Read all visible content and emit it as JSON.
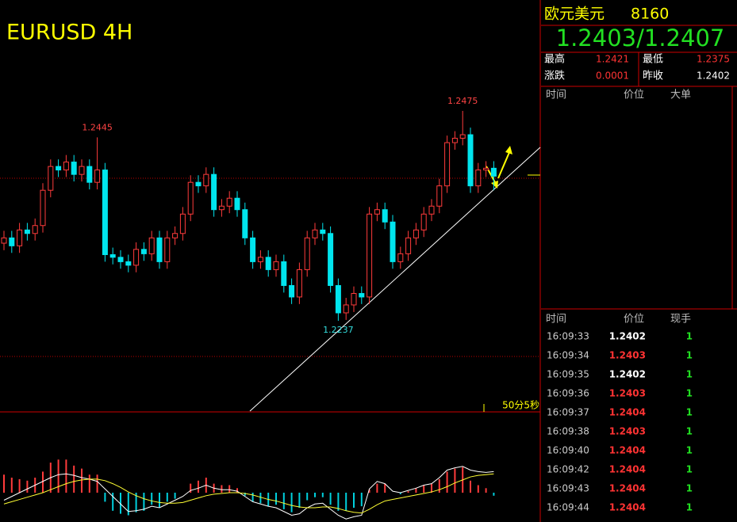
{
  "chart_data": {
    "type": "candlestick",
    "title": "EURUSD 4H",
    "open": [
      1.2325,
      1.2331,
      1.2322,
      1.234,
      1.2336,
      1.2345,
      1.2385,
      1.2412,
      1.2408,
      1.2417,
      1.2403,
      1.2412,
      1.2394,
      1.2408,
      1.2312,
      1.2309,
      1.2304,
      1.23,
      1.2318,
      1.2313,
      1.2331,
      1.2304,
      1.2331,
      1.2336,
      1.2358,
      1.2394,
      1.239,
      1.2403,
      1.2363,
      1.2367,
      1.2376,
      1.2363,
      1.2331,
      1.2304,
      1.2309,
      1.2295,
      1.2304,
      1.2277,
      1.2264,
      1.2295,
      1.2331,
      1.234,
      1.2336,
      1.2277,
      1.2246,
      1.2255,
      1.2268,
      1.2264,
      1.2358,
      1.2363,
      1.2349,
      1.2304,
      1.2313,
      1.2331,
      1.234,
      1.2358,
      1.2367,
      1.239,
      1.2439,
      1.2444,
      1.2448,
      1.239,
      1.2408,
      1.241
    ],
    "high": [
      1.2339,
      1.2339,
      1.2348,
      1.2348,
      1.2353,
      1.2393,
      1.242,
      1.242,
      1.2425,
      1.2425,
      1.242,
      1.242,
      1.2445,
      1.2416,
      1.232,
      1.2317,
      1.2312,
      1.2326,
      1.2326,
      1.2339,
      1.2339,
      1.2339,
      1.2344,
      1.2366,
      1.2402,
      1.2402,
      1.2411,
      1.2411,
      1.2375,
      1.2384,
      1.2384,
      1.2371,
      1.2339,
      1.2317,
      1.2317,
      1.2312,
      1.2312,
      1.2285,
      1.2303,
      1.2339,
      1.2348,
      1.2348,
      1.2344,
      1.2285,
      1.2263,
      1.2276,
      1.2276,
      1.2366,
      1.2371,
      1.2371,
      1.2357,
      1.2321,
      1.2339,
      1.2348,
      1.2366,
      1.2375,
      1.2398,
      1.2447,
      1.2452,
      1.2475,
      1.2456,
      1.2416,
      1.2418,
      1.2418
    ],
    "low": [
      1.2317,
      1.2314,
      1.2314,
      1.2328,
      1.2328,
      1.2337,
      1.2377,
      1.24,
      1.24,
      1.2395,
      1.2395,
      1.2386,
      1.2386,
      1.2304,
      1.2301,
      1.2296,
      1.2292,
      1.2292,
      1.2305,
      1.2305,
      1.2296,
      1.2296,
      1.2323,
      1.2328,
      1.235,
      1.2382,
      1.2382,
      1.2355,
      1.2355,
      1.2359,
      1.2355,
      1.2323,
      1.2296,
      1.2296,
      1.2287,
      1.2287,
      1.2269,
      1.2256,
      1.2256,
      1.2287,
      1.2323,
      1.2328,
      1.2269,
      1.2237,
      1.2238,
      1.2247,
      1.2256,
      1.2256,
      1.235,
      1.2341,
      1.2296,
      1.2296,
      1.2305,
      1.2323,
      1.2332,
      1.235,
      1.2359,
      1.2382,
      1.2431,
      1.2436,
      1.2382,
      1.2382,
      1.24,
      1.2385
    ],
    "close": [
      1.2331,
      1.2322,
      1.234,
      1.2336,
      1.2345,
      1.2385,
      1.2412,
      1.2408,
      1.2417,
      1.2403,
      1.2412,
      1.2394,
      1.2408,
      1.2312,
      1.2309,
      1.2304,
      1.23,
      1.2318,
      1.2313,
      1.2331,
      1.2304,
      1.2331,
      1.2336,
      1.2358,
      1.2394,
      1.239,
      1.2403,
      1.2363,
      1.2367,
      1.2376,
      1.2363,
      1.2331,
      1.2304,
      1.2309,
      1.2295,
      1.2304,
      1.2277,
      1.2264,
      1.2295,
      1.2331,
      1.234,
      1.2336,
      1.2277,
      1.2246,
      1.2255,
      1.2268,
      1.2264,
      1.2358,
      1.2363,
      1.2349,
      1.2304,
      1.2313,
      1.2331,
      1.234,
      1.2358,
      1.2367,
      1.239,
      1.2439,
      1.2444,
      1.2448,
      1.239,
      1.2408,
      1.241,
      1.2401
    ],
    "annotations": [
      {
        "text": "1.2445",
        "index": 12,
        "at": "high"
      },
      {
        "text": "1.2475",
        "index": 59,
        "at": "high"
      },
      {
        "text": "1.2237",
        "index": 43,
        "at": "low"
      }
    ],
    "timer": "50分5秒",
    "macd": {
      "hist": [
        12,
        10,
        9,
        8,
        10,
        14,
        20,
        22,
        22,
        18,
        16,
        12,
        12,
        -6,
        -12,
        -14,
        -15,
        -13,
        -12,
        -8,
        -10,
        -6,
        -4,
        0,
        6,
        8,
        10,
        6,
        5,
        5,
        3,
        -2,
        -6,
        -7,
        -9,
        -8,
        -11,
        -13,
        -10,
        -5,
        -3,
        -3,
        -8,
        -12,
        -12,
        -10,
        -9,
        2,
        6,
        6,
        0,
        -1,
        1,
        3,
        5,
        6,
        9,
        14,
        16,
        17,
        8,
        5,
        3,
        -2
      ],
      "dif": [
        -10,
        -5,
        0,
        5,
        10,
        15,
        20,
        24,
        25,
        23,
        20,
        18,
        15,
        5,
        -5,
        -15,
        -25,
        -24,
        -22,
        -18,
        -20,
        -15,
        -10,
        -5,
        3,
        6,
        10,
        6,
        4,
        4,
        2,
        -5,
        -12,
        -15,
        -18,
        -20,
        -25,
        -30,
        -28,
        -20,
        -15,
        -14,
        -22,
        -30,
        -35,
        -32,
        -30,
        5,
        15,
        12,
        2,
        0,
        3,
        6,
        10,
        12,
        20,
        30,
        33,
        35,
        30,
        28,
        27,
        28
      ],
      "dea": [
        -15,
        -12,
        -9,
        -6,
        -3,
        0,
        4,
        8,
        12,
        15,
        17,
        18,
        18,
        16,
        12,
        7,
        1,
        -4,
        -8,
        -11,
        -13,
        -14,
        -14,
        -13,
        -10,
        -7,
        -4,
        -2,
        -1,
        0,
        0,
        -1,
        -3,
        -6,
        -9,
        -11,
        -14,
        -17,
        -19,
        -20,
        -20,
        -19,
        -19,
        -21,
        -24,
        -26,
        -27,
        -22,
        -16,
        -11,
        -9,
        -7,
        -5,
        -3,
        -1,
        1,
        4,
        8,
        13,
        17,
        21,
        23,
        24,
        25
      ]
    }
  },
  "quote": {
    "name": "欧元美元",
    "code": "8160",
    "price": "1.2403/1.2407",
    "stats": [
      [
        "最高",
        "1.2421",
        "最低",
        "1.2375"
      ],
      [
        "涨跌",
        "0.0001",
        "昨收",
        "1.2402"
      ]
    ],
    "big_header": [
      "时间",
      "价位",
      "大单"
    ],
    "trade_header": [
      "时间",
      "价位",
      "现手"
    ],
    "trades": [
      {
        "time": "16:09:33",
        "price": "1.2402",
        "volume": "1",
        "color": "#ffffff"
      },
      {
        "time": "16:09:34",
        "price": "1.2403",
        "volume": "1",
        "color": "#ff3333"
      },
      {
        "time": "16:09:35",
        "price": "1.2402",
        "volume": "1",
        "color": "#ffffff"
      },
      {
        "time": "16:09:36",
        "price": "1.2403",
        "volume": "1",
        "color": "#ff3333"
      },
      {
        "time": "16:09:37",
        "price": "1.2404",
        "volume": "1",
        "color": "#ff3333"
      },
      {
        "time": "16:09:38",
        "price": "1.2403",
        "volume": "1",
        "color": "#ff3333"
      },
      {
        "time": "16:09:40",
        "price": "1.2404",
        "volume": "1",
        "color": "#ff3333"
      },
      {
        "time": "16:09:42",
        "price": "1.2404",
        "volume": "1",
        "color": "#ff3333"
      },
      {
        "time": "16:09:43",
        "price": "1.2404",
        "volume": "1",
        "color": "#ff3333"
      },
      {
        "time": "16:09:44",
        "price": "1.2404",
        "volume": "1",
        "color": "#ff3333"
      }
    ]
  }
}
